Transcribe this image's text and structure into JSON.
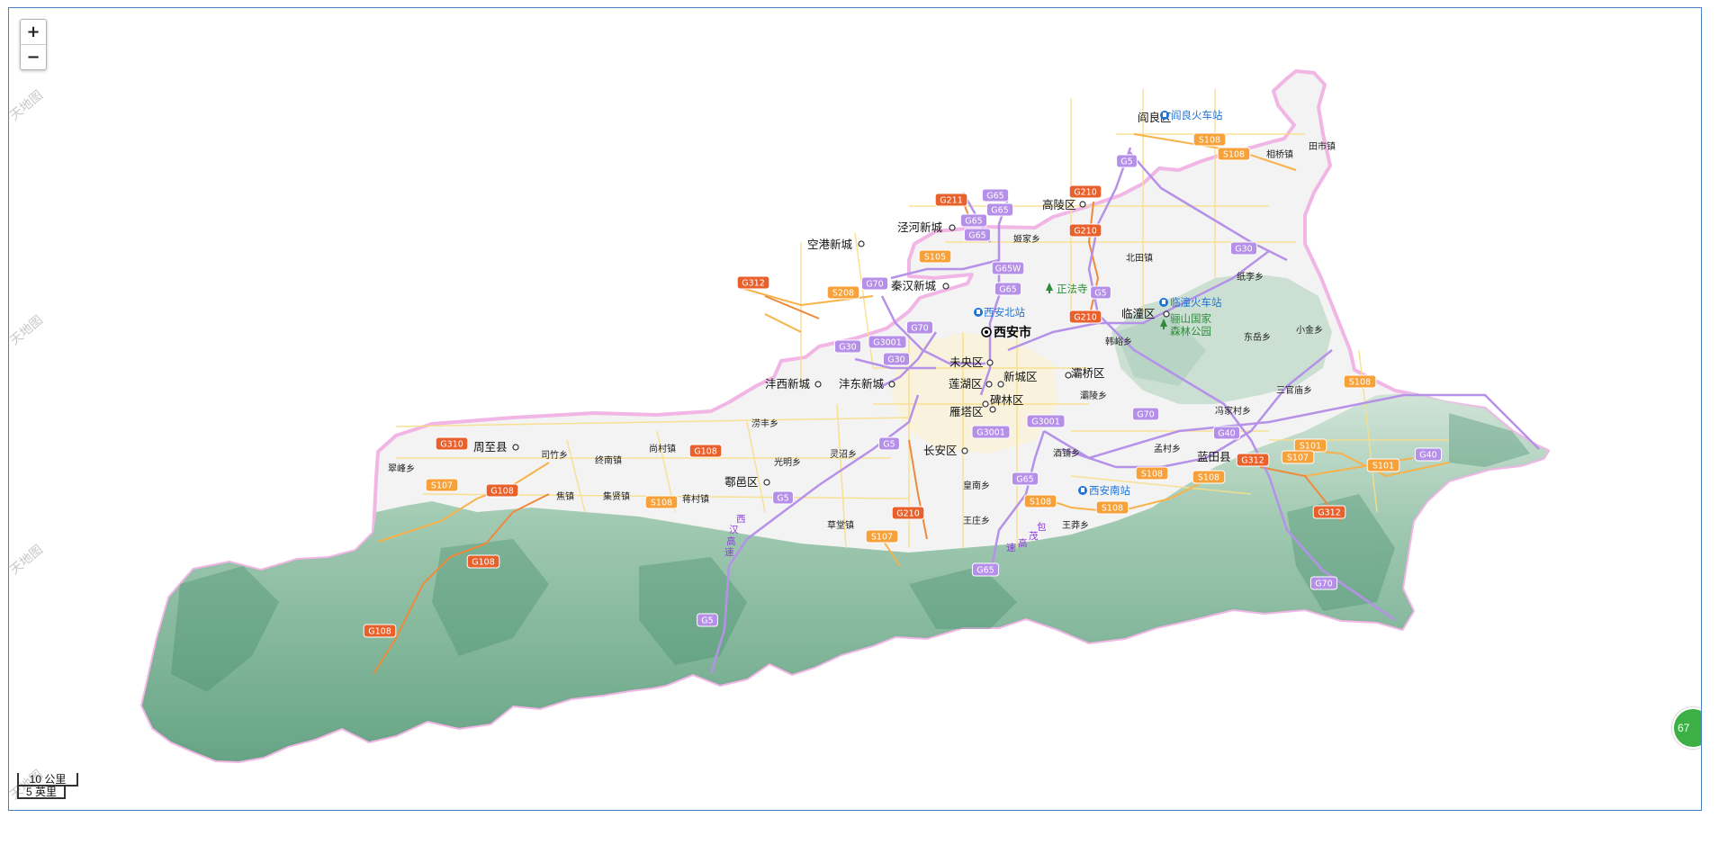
{
  "controls": {
    "zoom_in": "+",
    "zoom_out": "−"
  },
  "scale": {
    "km": "10 公里",
    "mi": "5 英里"
  },
  "side_badge": "67",
  "watermark": "天地图",
  "colors": {
    "border": "#f2b7e6",
    "land": "#f4f4f4",
    "mountain": "#5fa07f",
    "expressway": "#b690e8",
    "national_road": "#e8602c",
    "provincial_road": "#f7a13a",
    "city_road": "#f9e08e",
    "station": "#1f73d6",
    "park": "#2f8a3b"
  },
  "places": {
    "capital": "西安市",
    "yanliang": "阎良区",
    "gaoling": "高陵区",
    "jinghe": "泾河新城",
    "konggang": "空港新城",
    "qinhan": "秦汉新城",
    "lintong": "临潼区",
    "weiyang": "未央区",
    "lianhu": "莲湖区",
    "xincheng": "新城区",
    "baqiao": "灞桥区",
    "beilin": "碑林区",
    "yanta": "雁塔区",
    "fengxi": "沣西新城",
    "fengdong": "沣东新城",
    "changan": "长安区",
    "huyi": "鄠邑区",
    "zhouzhi": "周至县",
    "lantian": "蓝田县"
  },
  "towns": {
    "xiangqiao": "相桥镇",
    "tianshi": "田市镇",
    "yaojia": "姬家乡",
    "beitian": "北田镇",
    "zhili": "纸李乡",
    "dongyue": "东岳乡",
    "xiaojin": "小金乡",
    "hanyu": "韩峪乡",
    "sanguanmiao": "三官庙乡",
    "baling": "灞陵乡",
    "fengjiacun": "冯家村乡",
    "mengcun": "孟村乡",
    "jiufeng": "酒铺乡",
    "huangnan": "皇南乡",
    "wangzhuang": "王庄乡",
    "wangmang": "王莽乡",
    "caotang": "草堂镇",
    "lingzhao": "灵沼乡",
    "guangming": "光明乡",
    "lufeng": "涝丰乡",
    "shangcun": "尚村镇",
    "zhongnan": "终南镇",
    "sizhu": "司竹乡",
    "cuifeng": "翠峰乡",
    "jiaozhen": "焦镇",
    "jixian": "集贤镇",
    "jiangcun": "蒋村镇"
  },
  "pois": {
    "yanliang_station": "阎良火车站",
    "lintong_station": "临潼火车站",
    "xian_north": "西安北站",
    "xian_south": "西安南站",
    "zhengfa": "正法寺",
    "lishan_1": "骊山国家",
    "lishan_2": "森林公园"
  },
  "shields": {
    "G5": "G5",
    "G30": "G30",
    "G40": "G40",
    "G65": "G65",
    "G65W": "G65W",
    "G70": "G70",
    "G3001": "G3001",
    "G108": "G108",
    "G210": "G210",
    "G211": "G211",
    "G310": "G310",
    "G312": "G312",
    "S101": "S101",
    "S105": "S105",
    "S107": "S107",
    "S108": "S108",
    "S208": "S208"
  },
  "expressway_labels": {
    "xihan": [
      "西",
      "汉",
      "高",
      "速"
    ],
    "baomao": [
      "包",
      "茂",
      "高",
      "速"
    ]
  }
}
